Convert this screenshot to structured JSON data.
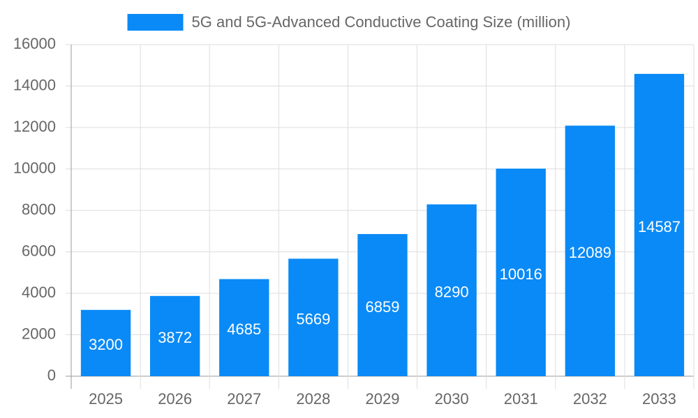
{
  "chart_data": {
    "type": "bar",
    "categories": [
      "2025",
      "2026",
      "2027",
      "2028",
      "2029",
      "2030",
      "2031",
      "2032",
      "2033"
    ],
    "series": [
      {
        "name": "5G and 5G-Advanced Conductive Coating Size (million)",
        "color": "#0a8af6",
        "values": [
          3200,
          3872,
          4685,
          5669,
          6859,
          8290,
          10016,
          12089,
          14587
        ]
      }
    ],
    "ylim": [
      0,
      16000
    ],
    "yticks": [
      0,
      2000,
      4000,
      6000,
      8000,
      10000,
      12000,
      14000,
      16000
    ],
    "grid": true,
    "legend": "top",
    "data_labels": true
  }
}
